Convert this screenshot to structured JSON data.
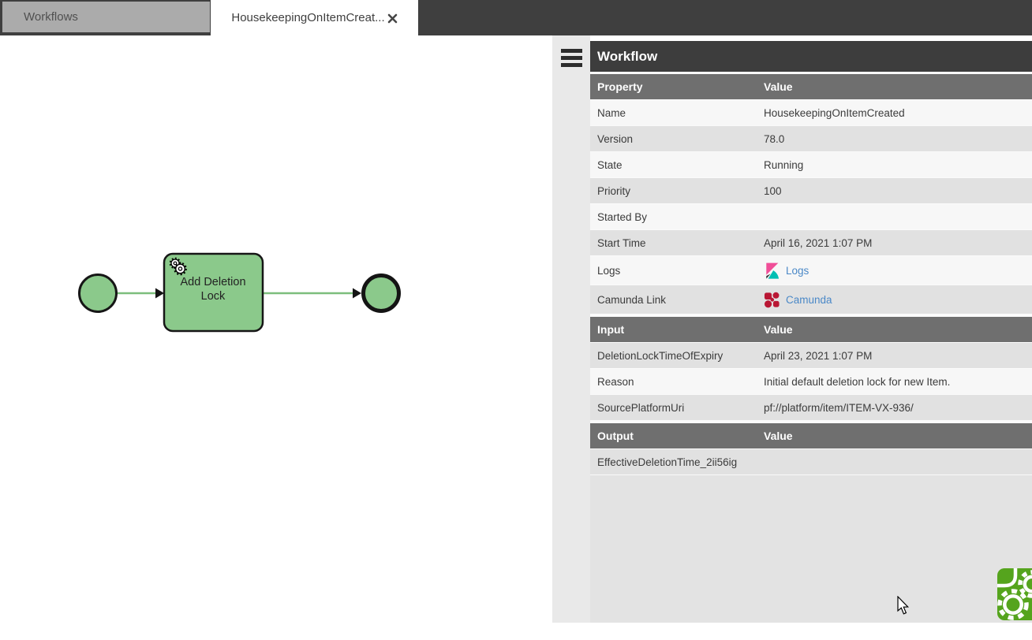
{
  "tabs": {
    "inactive_label": "Workflows",
    "active_label": "HousekeepingOnItemCreat..."
  },
  "diagram": {
    "task_label_line1": "Add Deletion",
    "task_label_line2": "Lock",
    "task_marker_icon": "service-task-gears-icon",
    "elements": [
      "start-event",
      "service-task",
      "end-event"
    ]
  },
  "panel": {
    "title": "Workflow",
    "menu_icon": "hamburger-menu-icon",
    "sections": [
      {
        "name": "properties",
        "header": {
          "property": "Property",
          "value": "Value"
        },
        "start_shade": "light",
        "rows": [
          {
            "property": "Name",
            "value": "HousekeepingOnItemCreated"
          },
          {
            "property": "Version",
            "value": "78.0"
          },
          {
            "property": "State",
            "value": "Running"
          },
          {
            "property": "Priority",
            "value": "100"
          },
          {
            "property": "Started By",
            "value": ""
          },
          {
            "property": "Start Time",
            "value": "April 16, 2021 1:07 PM"
          },
          {
            "property": "Logs",
            "link": {
              "label": "Logs",
              "icon": "kibana"
            }
          },
          {
            "property": "Camunda Link",
            "link": {
              "label": "Camunda",
              "icon": "camunda"
            }
          }
        ]
      },
      {
        "name": "input",
        "header": {
          "property": "Input",
          "value": "Value"
        },
        "start_shade": "dark",
        "rows": [
          {
            "property": "DeletionLockTimeOfExpiry",
            "value": "April 23, 2021 1:07 PM"
          },
          {
            "property": "Reason",
            "value": "Initial default deletion lock for new Item."
          },
          {
            "property": "SourcePlatformUri",
            "value": "pf://platform/item/ITEM-VX-936/"
          }
        ]
      },
      {
        "name": "output",
        "header": {
          "property": "Output",
          "value": "Value"
        },
        "start_shade": "dark",
        "rows": [
          {
            "property": "EffectiveDeletionTime_2ii56ig",
            "value": ""
          }
        ]
      }
    ],
    "footer_logo_icon": "workflow-gears-logo"
  },
  "colors": {
    "dark-bar": "#3f3f3f",
    "section-header": "#6f6f6f",
    "row-light": "#f7f7f7",
    "row-dark": "#e1e1e1",
    "panel-bg": "#e3e3e3",
    "strip-bg": "#e9e9e9",
    "link-blue": "#4a88c7",
    "bpmn-fill": "#8bc98b",
    "bpmn-line": "#7cbe7c",
    "camunda-red": "#b91734",
    "kibana-pink": "#f04e98",
    "kibana-teal": "#00bfb3",
    "logo-green": "#55a41d"
  }
}
